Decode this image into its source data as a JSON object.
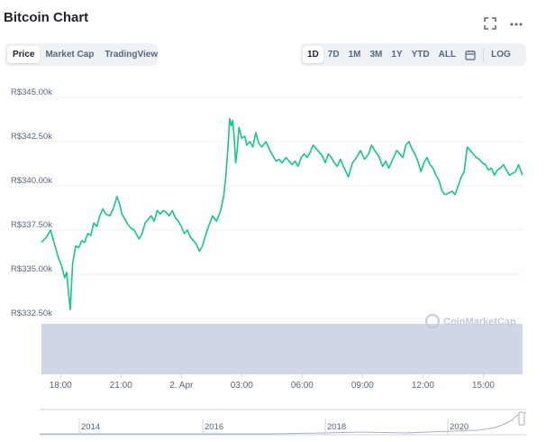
{
  "header": {
    "title": "Bitcoin Chart"
  },
  "icons": {
    "fullscreen": "fullscreen-icon",
    "more": "more-icon",
    "calendar": "calendar-icon"
  },
  "tabs": [
    {
      "label": "Price",
      "active": true
    },
    {
      "label": "Market Cap",
      "active": false
    },
    {
      "label": "TradingView",
      "active": false
    }
  ],
  "ranges": [
    {
      "label": "1D",
      "active": true
    },
    {
      "label": "7D",
      "active": false
    },
    {
      "label": "1M",
      "active": false
    },
    {
      "label": "3M",
      "active": false
    },
    {
      "label": "1Y",
      "active": false
    },
    {
      "label": "YTD",
      "active": false
    },
    {
      "label": "ALL",
      "active": false
    }
  ],
  "log_label": "LOG",
  "colors": {
    "line": "#16c784",
    "volume": "#cfd6e4",
    "grid": "#eff2f5",
    "text": "#58667e"
  },
  "chart_data": {
    "type": "line",
    "title": "",
    "xlabel": "",
    "ylabel": "",
    "ylim": [
      332500,
      345000
    ],
    "y_ticks": [
      {
        "value": 345000,
        "label": "R$345.00k"
      },
      {
        "value": 342500,
        "label": "R$342.50k"
      },
      {
        "value": 340000,
        "label": "R$340.00k"
      },
      {
        "value": 337500,
        "label": "R$337.50k"
      },
      {
        "value": 335000,
        "label": "R$335.00k"
      },
      {
        "value": 332500,
        "label": "R$332.50k"
      }
    ],
    "x_ticks": [
      {
        "t": 0,
        "label": "18:00"
      },
      {
        "t": 3,
        "label": "21:00"
      },
      {
        "t": 6,
        "label": "2. Apr"
      },
      {
        "t": 9,
        "label": "03:00"
      },
      {
        "t": 12,
        "label": "06:00"
      },
      {
        "t": 15,
        "label": "09:00"
      },
      {
        "t": 18,
        "label": "12:00"
      },
      {
        "t": 21,
        "label": "15:00"
      }
    ],
    "xlim": [
      -0.95,
      22.95
    ],
    "series": [
      {
        "values": [
          [
            -0.95,
            336800
          ],
          [
            -0.7,
            337100
          ],
          [
            -0.5,
            337500
          ],
          [
            -0.3,
            336700
          ],
          [
            -0.1,
            335900
          ],
          [
            0.05,
            335500
          ],
          [
            0.2,
            334800
          ],
          [
            0.3,
            335100
          ],
          [
            0.4,
            333900
          ],
          [
            0.48,
            333000
          ],
          [
            0.6,
            335600
          ],
          [
            0.75,
            336600
          ],
          [
            0.9,
            336500
          ],
          [
            1.05,
            336900
          ],
          [
            1.2,
            336800
          ],
          [
            1.35,
            337300
          ],
          [
            1.5,
            337200
          ],
          [
            1.65,
            337900
          ],
          [
            1.8,
            337700
          ],
          [
            1.95,
            338300
          ],
          [
            2.1,
            338700
          ],
          [
            2.25,
            338400
          ],
          [
            2.45,
            338300
          ],
          [
            2.65,
            338800
          ],
          [
            2.8,
            339400
          ],
          [
            2.95,
            338900
          ],
          [
            3.05,
            338400
          ],
          [
            3.2,
            338100
          ],
          [
            3.35,
            337800
          ],
          [
            3.5,
            337600
          ],
          [
            3.65,
            337500
          ],
          [
            3.75,
            337300
          ],
          [
            3.9,
            337000
          ],
          [
            4.05,
            337300
          ],
          [
            4.2,
            337900
          ],
          [
            4.35,
            338100
          ],
          [
            4.5,
            338300
          ],
          [
            4.65,
            338000
          ],
          [
            4.8,
            338600
          ],
          [
            4.95,
            338400
          ],
          [
            5.1,
            338600
          ],
          [
            5.25,
            338500
          ],
          [
            5.4,
            338300
          ],
          [
            5.55,
            338600
          ],
          [
            5.7,
            338200
          ],
          [
            5.85,
            338000
          ],
          [
            6.0,
            337700
          ],
          [
            6.15,
            337300
          ],
          [
            6.3,
            337500
          ],
          [
            6.45,
            337100
          ],
          [
            6.6,
            336900
          ],
          [
            6.75,
            336700
          ],
          [
            6.9,
            336300
          ],
          [
            7.05,
            336600
          ],
          [
            7.2,
            337200
          ],
          [
            7.35,
            337700
          ],
          [
            7.55,
            338300
          ],
          [
            7.75,
            338000
          ],
          [
            7.95,
            338600
          ],
          [
            8.1,
            339400
          ],
          [
            8.2,
            340400
          ],
          [
            8.32,
            342200
          ],
          [
            8.4,
            343800
          ],
          [
            8.48,
            343400
          ],
          [
            8.55,
            343700
          ],
          [
            8.62,
            342800
          ],
          [
            8.7,
            341300
          ],
          [
            8.78,
            342100
          ],
          [
            8.86,
            343300
          ],
          [
            9.0,
            342700
          ],
          [
            9.15,
            342800
          ],
          [
            9.25,
            342300
          ],
          [
            9.4,
            342500
          ],
          [
            9.55,
            342200
          ],
          [
            9.7,
            343000
          ],
          [
            9.85,
            342400
          ],
          [
            10.0,
            342200
          ],
          [
            10.2,
            342500
          ],
          [
            10.4,
            342000
          ],
          [
            10.55,
            341700
          ],
          [
            10.7,
            341400
          ],
          [
            10.85,
            341500
          ],
          [
            11.0,
            341300
          ],
          [
            11.2,
            341600
          ],
          [
            11.35,
            341400
          ],
          [
            11.5,
            341200
          ],
          [
            11.65,
            341400
          ],
          [
            11.8,
            341100
          ],
          [
            11.95,
            341600
          ],
          [
            12.1,
            341800
          ],
          [
            12.25,
            341600
          ],
          [
            12.4,
            341900
          ],
          [
            12.55,
            342300
          ],
          [
            12.7,
            342100
          ],
          [
            12.85,
            341900
          ],
          [
            13.0,
            341700
          ],
          [
            13.15,
            341300
          ],
          [
            13.3,
            341800
          ],
          [
            13.45,
            341600
          ],
          [
            13.6,
            341300
          ],
          [
            13.75,
            341100
          ],
          [
            13.9,
            341500
          ],
          [
            14.05,
            341100
          ],
          [
            14.3,
            340500
          ],
          [
            14.5,
            341300
          ],
          [
            14.7,
            341600
          ],
          [
            14.9,
            342000
          ],
          [
            15.1,
            341500
          ],
          [
            15.3,
            341800
          ],
          [
            15.45,
            342300
          ],
          [
            15.6,
            342000
          ],
          [
            15.8,
            341700
          ],
          [
            16.0,
            341100
          ],
          [
            16.15,
            341400
          ],
          [
            16.3,
            341000
          ],
          [
            16.5,
            341500
          ],
          [
            16.7,
            342000
          ],
          [
            16.85,
            341800
          ],
          [
            17.0,
            341600
          ],
          [
            17.15,
            342300
          ],
          [
            17.3,
            342500
          ],
          [
            17.45,
            342100
          ],
          [
            17.6,
            341800
          ],
          [
            17.75,
            341400
          ],
          [
            17.9,
            340800
          ],
          [
            18.05,
            341300
          ],
          [
            18.2,
            341600
          ],
          [
            18.35,
            341200
          ],
          [
            18.5,
            341000
          ],
          [
            18.65,
            340600
          ],
          [
            18.8,
            340300
          ],
          [
            18.95,
            339700
          ],
          [
            19.1,
            339500
          ],
          [
            19.3,
            339600
          ],
          [
            19.45,
            339700
          ],
          [
            19.6,
            339500
          ],
          [
            19.75,
            340000
          ],
          [
            19.9,
            340500
          ],
          [
            20.05,
            340800
          ],
          [
            20.2,
            342200
          ],
          [
            20.35,
            342000
          ],
          [
            20.5,
            341800
          ],
          [
            20.65,
            341600
          ],
          [
            20.8,
            341500
          ],
          [
            20.95,
            341300
          ],
          [
            21.1,
            341200
          ],
          [
            21.25,
            340900
          ],
          [
            21.4,
            341000
          ],
          [
            21.55,
            340600
          ],
          [
            21.7,
            340900
          ],
          [
            21.85,
            341000
          ],
          [
            22.0,
            341200
          ],
          [
            22.15,
            340900
          ],
          [
            22.3,
            340600
          ],
          [
            22.45,
            340700
          ],
          [
            22.6,
            340800
          ],
          [
            22.75,
            341200
          ],
          [
            22.95,
            340600
          ]
        ]
      }
    ],
    "navigator": {
      "labels": [
        "2014",
        "2016",
        "2018",
        "2020"
      ]
    },
    "grid": true,
    "watermark": "CoinMarketCap"
  }
}
